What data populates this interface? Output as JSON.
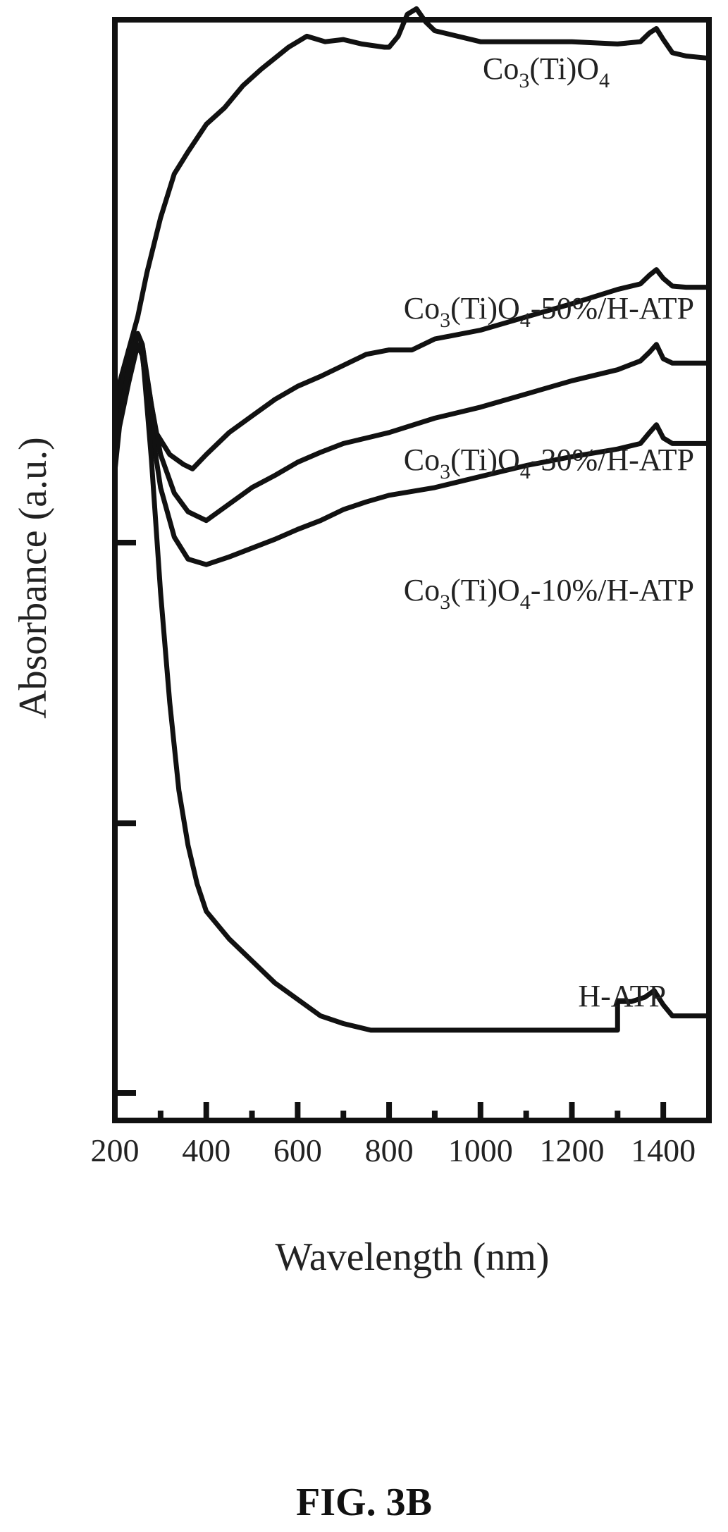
{
  "figure": {
    "caption": "FIG. 3B"
  },
  "chart_data": {
    "type": "line",
    "title": "",
    "xlabel": "Wavelength (nm)",
    "ylabel": "Absorbance (a.u.)",
    "xlim": [
      200,
      1500
    ],
    "ylim": [
      0,
      1
    ],
    "x_ticks": [
      200,
      400,
      600,
      800,
      1000,
      1200,
      1400
    ],
    "x_tick_labels": [
      "200",
      "400",
      "600",
      "800",
      "1000",
      "1200",
      "1400"
    ],
    "y_tick_labels": [],
    "grid": false,
    "series": [
      {
        "name": "Co3(Ti)O4",
        "label_parts": [
          [
            "Co"
          ],
          [
            "3",
            "sub"
          ],
          [
            "(Ti)O"
          ],
          [
            "4",
            "sub"
          ]
        ],
        "x": [
          200,
          210,
          230,
          250,
          270,
          300,
          330,
          360,
          400,
          440,
          480,
          520,
          580,
          620,
          660,
          700,
          740,
          790,
          800,
          820,
          840,
          860,
          880,
          900,
          950,
          1000,
          1100,
          1200,
          1300,
          1350,
          1370,
          1385,
          1400,
          1420,
          1450,
          1500
        ],
        "y": [
          0.64,
          0.67,
          0.7,
          0.73,
          0.77,
          0.82,
          0.86,
          0.88,
          0.905,
          0.92,
          0.94,
          0.955,
          0.975,
          0.985,
          0.98,
          0.982,
          0.978,
          0.975,
          0.975,
          0.985,
          1.005,
          1.01,
          0.998,
          0.99,
          0.985,
          0.98,
          0.98,
          0.98,
          0.978,
          0.98,
          0.988,
          0.992,
          0.982,
          0.97,
          0.967,
          0.965
        ]
      },
      {
        "name": "Co3(Ti)O4-50%/H-ATP",
        "label_parts": [
          [
            "Co"
          ],
          [
            "3",
            "sub"
          ],
          [
            "(Ti)O"
          ],
          [
            "4",
            "sub"
          ],
          [
            "-50%/H-ATP"
          ]
        ],
        "x": [
          200,
          210,
          230,
          250,
          260,
          270,
          290,
          320,
          350,
          370,
          400,
          450,
          500,
          550,
          600,
          650,
          700,
          750,
          800,
          850,
          900,
          1000,
          1100,
          1200,
          1300,
          1350,
          1370,
          1385,
          1400,
          1420,
          1450,
          1500
        ],
        "y": [
          0.62,
          0.66,
          0.7,
          0.715,
          0.705,
          0.675,
          0.625,
          0.605,
          0.596,
          0.592,
          0.605,
          0.625,
          0.64,
          0.655,
          0.667,
          0.676,
          0.686,
          0.696,
          0.7,
          0.7,
          0.71,
          0.718,
          0.73,
          0.742,
          0.755,
          0.76,
          0.768,
          0.773,
          0.765,
          0.758,
          0.757,
          0.757
        ]
      },
      {
        "name": "Co3(Ti)O4-30%/H-ATP",
        "label_parts": [
          [
            "Co"
          ],
          [
            "3",
            "sub"
          ],
          [
            "(Ti)O"
          ],
          [
            "4",
            "sub"
          ],
          [
            "-30%/H-ATP"
          ]
        ],
        "x": [
          200,
          210,
          230,
          250,
          260,
          280,
          300,
          330,
          360,
          400,
          450,
          500,
          550,
          600,
          650,
          700,
          750,
          800,
          900,
          1000,
          1100,
          1200,
          1300,
          1350,
          1370,
          1385,
          1400,
          1420,
          1450,
          1500
        ],
        "y": [
          0.6,
          0.64,
          0.68,
          0.715,
          0.705,
          0.65,
          0.605,
          0.57,
          0.553,
          0.545,
          0.56,
          0.575,
          0.586,
          0.598,
          0.607,
          0.615,
          0.62,
          0.625,
          0.638,
          0.648,
          0.66,
          0.672,
          0.682,
          0.69,
          0.698,
          0.705,
          0.692,
          0.688,
          0.688,
          0.688
        ]
      },
      {
        "name": "Co3(Ti)O4-10%/H-ATP",
        "label_parts": [
          [
            "Co"
          ],
          [
            "3",
            "sub"
          ],
          [
            "(Ti)O"
          ],
          [
            "4",
            "sub"
          ],
          [
            "-10%/H-ATP"
          ]
        ],
        "x": [
          200,
          210,
          230,
          250,
          260,
          280,
          300,
          330,
          360,
          400,
          450,
          500,
          550,
          600,
          650,
          700,
          750,
          800,
          900,
          1000,
          1100,
          1200,
          1300,
          1350,
          1370,
          1385,
          1400,
          1420,
          1450,
          1500
        ],
        "y": [
          0.59,
          0.63,
          0.67,
          0.705,
          0.695,
          0.63,
          0.575,
          0.53,
          0.51,
          0.505,
          0.512,
          0.52,
          0.528,
          0.537,
          0.545,
          0.555,
          0.562,
          0.568,
          0.575,
          0.585,
          0.595,
          0.603,
          0.61,
          0.615,
          0.625,
          0.632,
          0.62,
          0.615,
          0.615,
          0.615
        ]
      },
      {
        "name": "H-ATP",
        "label_parts": [
          [
            "H-ATP"
          ]
        ],
        "x": [
          200,
          220,
          240,
          260,
          280,
          300,
          320,
          340,
          360,
          380,
          400,
          450,
          500,
          550,
          600,
          650,
          700,
          760,
          800,
          900,
          1000,
          1100,
          1200,
          1300,
          1300,
          1330,
          1360,
          1380,
          1400,
          1420,
          1450,
          1500
        ],
        "y": [
          0.61,
          0.66,
          0.705,
          0.7,
          0.6,
          0.48,
          0.38,
          0.3,
          0.25,
          0.215,
          0.19,
          0.165,
          0.145,
          0.125,
          0.11,
          0.095,
          0.088,
          0.082,
          0.082,
          0.082,
          0.082,
          0.082,
          0.082,
          0.082,
          0.108,
          0.108,
          0.112,
          0.118,
          0.105,
          0.095,
          0.095,
          0.095
        ]
      }
    ]
  }
}
